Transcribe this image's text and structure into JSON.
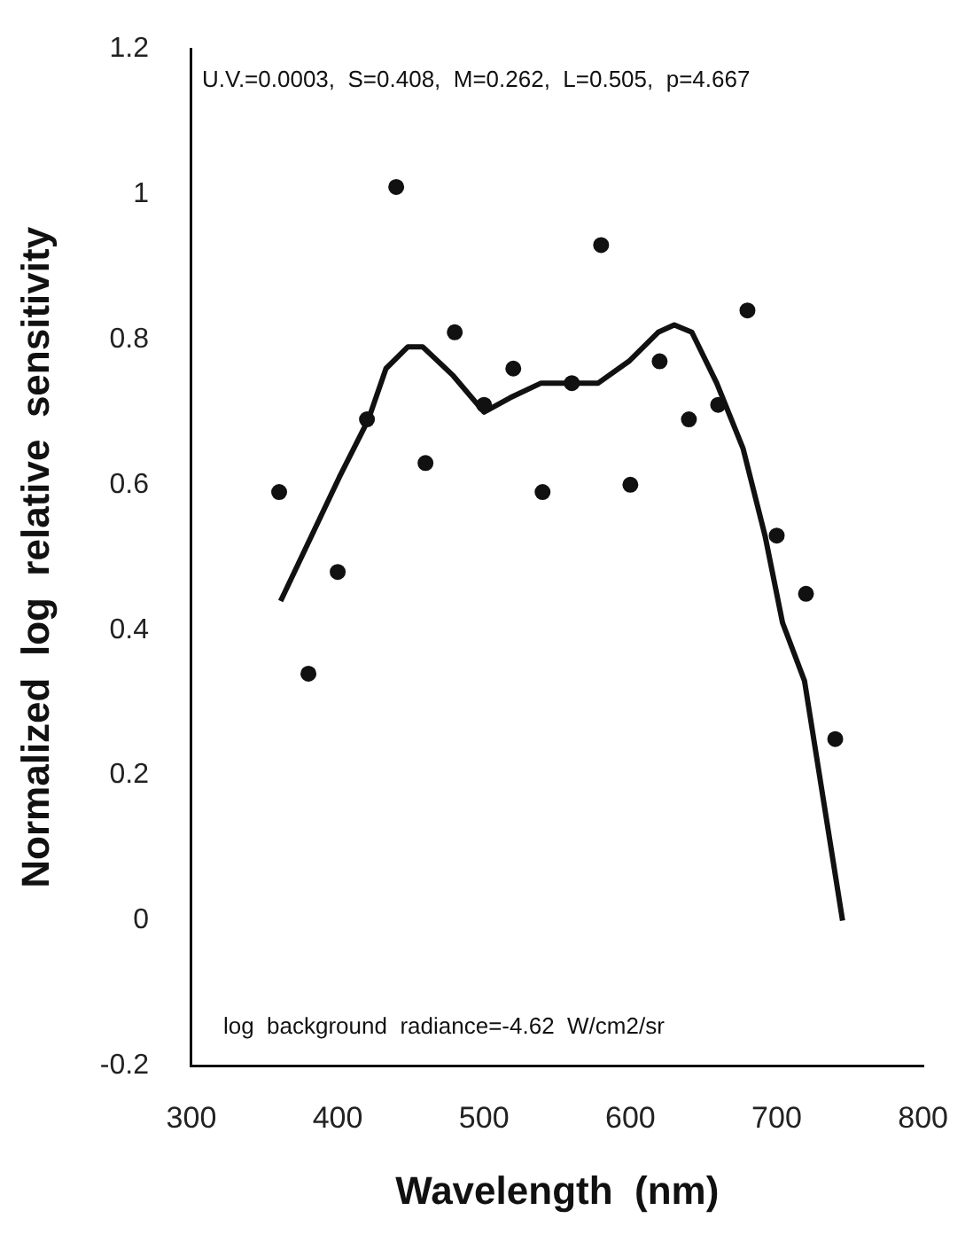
{
  "chart_data": {
    "type": "scatter",
    "xlabel": "Wavelength  (nm)",
    "ylabel": "Normalized  log  relative  sensitivity",
    "annotations": [
      "U.V.=0.0003,  S=0.408,  M=0.262,  L=0.505,  p=4.667",
      "log  background  radiance=-4.62  W/cm2/sr"
    ],
    "xlim": [
      300,
      800
    ],
    "xticks": [
      300,
      400,
      500,
      600,
      700,
      800
    ],
    "ylim": [
      -0.2,
      1.2
    ],
    "yticks": [
      -0.2,
      0,
      0.2,
      0.4,
      0.6,
      0.8,
      1,
      1.2
    ],
    "grid": false,
    "legend": false,
    "series": [
      {
        "color": "#111111",
        "marker": "circle",
        "x": [
          360,
          380,
          400,
          420,
          440,
          460,
          480,
          500,
          520,
          540,
          560,
          580,
          600,
          620,
          640,
          660,
          680,
          700,
          720,
          740
        ],
        "values": [
          0.59,
          0.34,
          0.48,
          0.69,
          1.01,
          0.63,
          0.81,
          0.71,
          0.76,
          0.59,
          0.74,
          0.93,
          0.6,
          0.77,
          0.69,
          0.71,
          0.84,
          0.53,
          0.45,
          0.25
        ]
      },
      {
        "type": "line",
        "color": "#111111",
        "marker": "none",
        "line_style": "solid",
        "x": [
          361,
          401,
          421,
          433,
          448,
          458,
          479,
          500,
          518,
          539,
          560,
          578,
          599,
          619,
          630,
          642,
          659,
          677,
          692,
          704,
          719,
          745
        ],
        "values": [
          0.44,
          0.61,
          0.69,
          0.76,
          0.79,
          0.79,
          0.75,
          0.7,
          0.72,
          0.74,
          0.74,
          0.74,
          0.77,
          0.81,
          0.82,
          0.81,
          0.74,
          0.65,
          0.53,
          0.41,
          0.33,
          0.0
        ]
      }
    ]
  }
}
